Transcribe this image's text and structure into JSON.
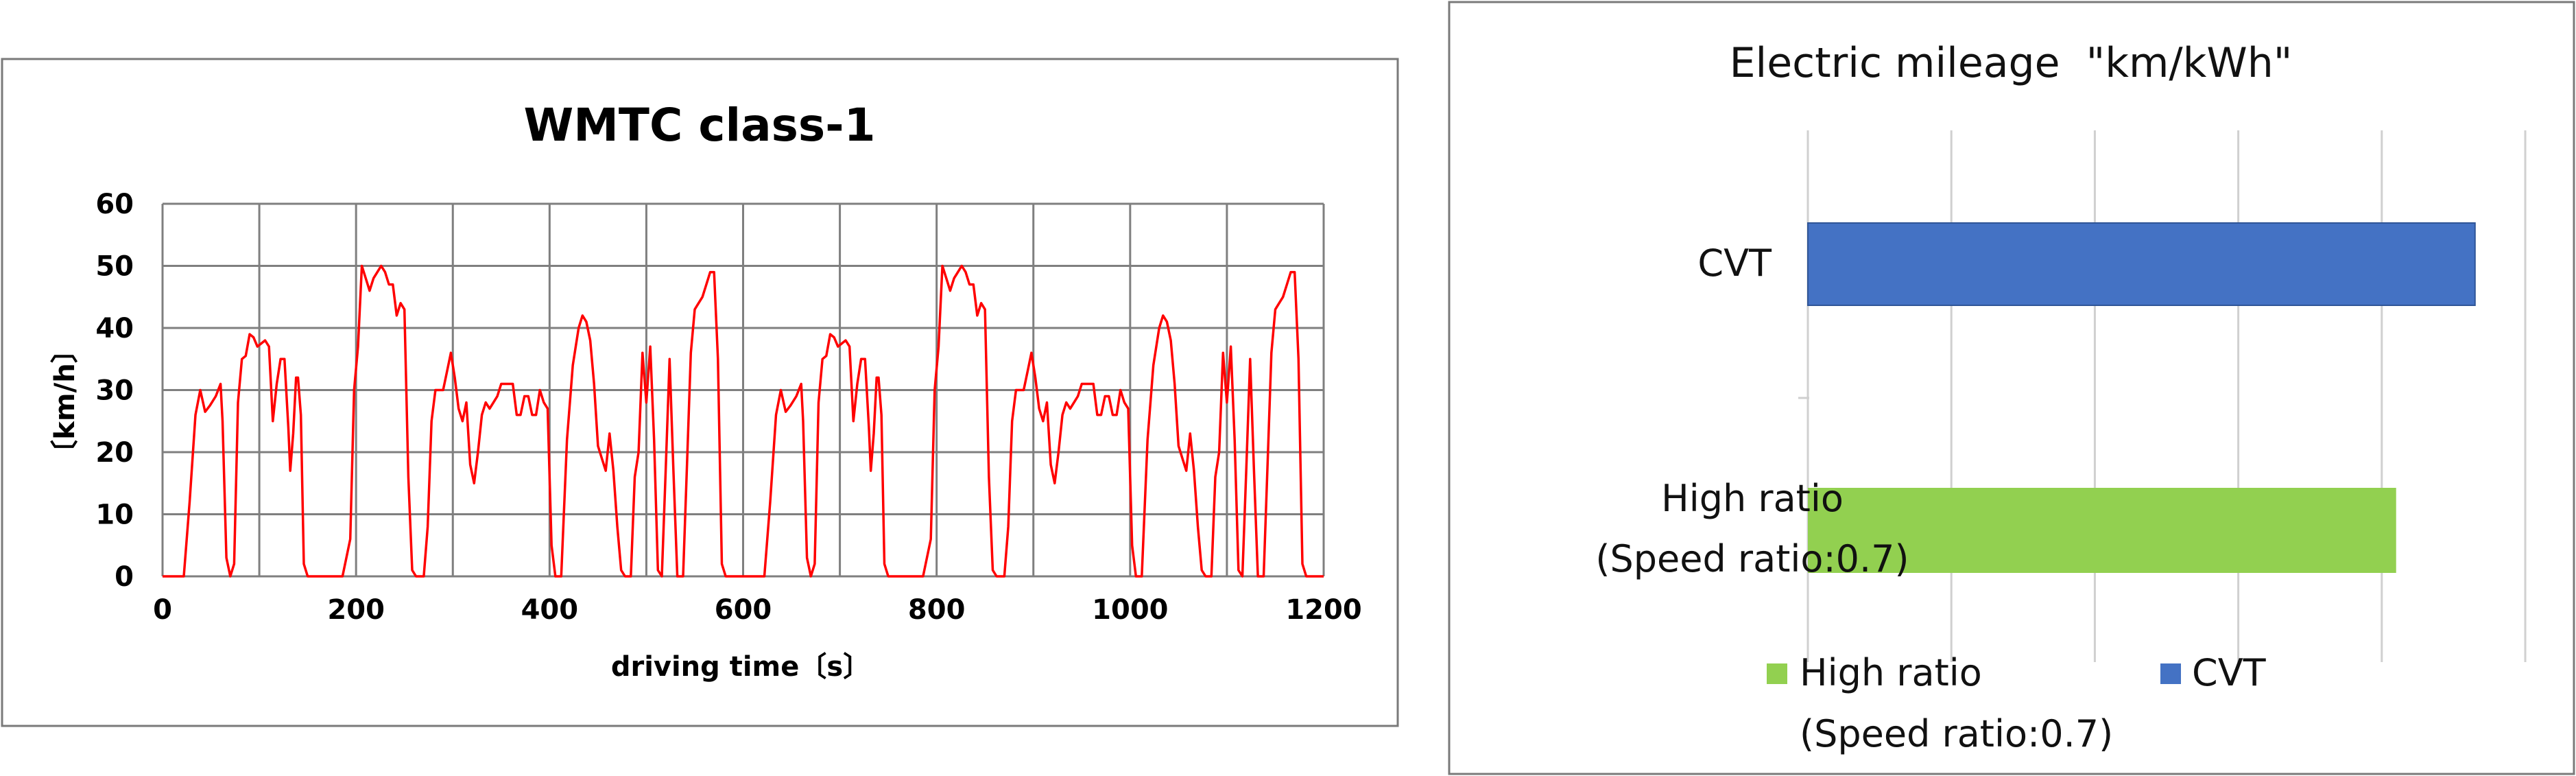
{
  "chart_data": [
    {
      "type": "line",
      "title": "WMTC class-1",
      "xlabel": "driving time〔s〕",
      "ylabel": "〔km/h〕",
      "xlim": [
        0,
        1200
      ],
      "ylim": [
        0,
        60
      ],
      "x_ticks": [
        "0",
        "200",
        "400",
        "600",
        "800",
        "1000",
        "1200"
      ],
      "y_ticks": [
        "0",
        "10",
        "20",
        "30",
        "40",
        "50",
        "60"
      ],
      "grid": true,
      "line_color": "#ff0000",
      "series": [
        {
          "name": "",
          "points": [
            [
              0,
              0
            ],
            [
              22,
              0
            ],
            [
              28,
              12
            ],
            [
              34,
              26
            ],
            [
              39,
              30
            ],
            [
              44,
              26.5
            ],
            [
              49,
              27.5
            ],
            [
              55,
              29
            ],
            [
              60,
              31
            ],
            [
              62,
              25
            ],
            [
              66,
              3
            ],
            [
              70,
              0
            ],
            [
              74,
              2
            ],
            [
              78,
              28
            ],
            [
              82,
              35
            ],
            [
              86,
              35.5
            ],
            [
              90,
              39
            ],
            [
              94,
              38.5
            ],
            [
              98,
              37
            ],
            [
              102,
              37.5
            ],
            [
              106,
              38
            ],
            [
              110,
              37
            ],
            [
              114,
              25
            ],
            [
              118,
              31
            ],
            [
              122,
              35
            ],
            [
              126,
              35
            ],
            [
              130,
              24
            ],
            [
              132,
              17
            ],
            [
              135,
              23
            ],
            [
              138,
              32
            ],
            [
              140,
              32
            ],
            [
              143,
              26
            ],
            [
              146,
              2
            ],
            [
              150,
              0
            ],
            [
              186,
              0
            ],
            [
              194,
              6
            ],
            [
              198,
              30
            ],
            [
              202,
              37
            ],
            [
              206,
              50
            ],
            [
              210,
              48
            ],
            [
              214,
              46
            ],
            [
              218,
              48
            ],
            [
              222,
              49
            ],
            [
              226,
              50
            ],
            [
              230,
              49
            ],
            [
              234,
              47
            ],
            [
              238,
              47
            ],
            [
              242,
              42
            ],
            [
              246,
              44
            ],
            [
              250,
              43
            ],
            [
              254,
              16
            ],
            [
              258,
              1
            ],
            [
              262,
              0
            ],
            [
              270,
              0
            ],
            [
              274,
              8
            ],
            [
              278,
              25
            ],
            [
              282,
              30
            ],
            [
              286,
              30
            ],
            [
              290,
              30
            ],
            [
              294,
              33
            ],
            [
              298,
              36
            ],
            [
              302,
              32
            ],
            [
              306,
              27
            ],
            [
              310,
              25
            ],
            [
              314,
              28
            ],
            [
              318,
              18
            ],
            [
              322,
              15
            ],
            [
              326,
              20
            ],
            [
              330,
              26
            ],
            [
              334,
              28
            ],
            [
              338,
              27
            ],
            [
              342,
              28
            ],
            [
              346,
              29
            ],
            [
              350,
              31
            ],
            [
              354,
              31
            ],
            [
              358,
              31
            ],
            [
              362,
              31
            ],
            [
              366,
              26
            ],
            [
              370,
              26
            ],
            [
              374,
              29
            ],
            [
              378,
              29
            ],
            [
              382,
              26
            ],
            [
              386,
              26
            ],
            [
              390,
              30
            ],
            [
              394,
              28
            ],
            [
              398,
              27
            ],
            [
              402,
              5
            ],
            [
              406,
              0
            ],
            [
              412,
              0
            ],
            [
              418,
              22
            ],
            [
              424,
              34
            ],
            [
              430,
              40
            ],
            [
              434,
              42
            ],
            [
              438,
              41
            ],
            [
              442,
              38
            ],
            [
              446,
              31
            ],
            [
              450,
              21
            ],
            [
              454,
              19
            ],
            [
              458,
              17
            ],
            [
              462,
              23
            ],
            [
              466,
              17
            ],
            [
              470,
              8
            ],
            [
              474,
              1
            ],
            [
              478,
              0
            ],
            [
              484,
              0
            ],
            [
              488,
              16
            ],
            [
              492,
              20
            ],
            [
              496,
              36
            ],
            [
              500,
              28
            ],
            [
              504,
              37
            ],
            [
              508,
              22
            ],
            [
              512,
              1
            ],
            [
              516,
              0
            ],
            [
              520,
              17
            ],
            [
              524,
              35
            ],
            [
              528,
              17
            ],
            [
              532,
              0
            ],
            [
              538,
              0
            ],
            [
              542,
              18
            ],
            [
              546,
              36
            ],
            [
              550,
              43
            ],
            [
              554,
              44
            ],
            [
              558,
              45
            ],
            [
              562,
              47
            ],
            [
              566,
              49
            ],
            [
              570,
              49
            ],
            [
              574,
              35
            ],
            [
              578,
              2
            ],
            [
              582,
              0
            ],
            [
              600,
              0
            ]
          ]
        }
      ]
    },
    {
      "type": "bar",
      "orientation": "horizontal",
      "title": "Electric mileage  \"km/kWh\"",
      "categories": [
        "CVT",
        "High ratio",
        "(Speed ratio:0.7)"
      ],
      "value_axis_max": 5,
      "grid": true,
      "legend_position": "bottom",
      "series": [
        {
          "name": "CVT",
          "value": 4.65,
          "color": "#4472c4",
          "label": "CVT"
        },
        {
          "name": "High ratio\n(Speed ratio:0.7)",
          "value": 4.1,
          "color": "#92d050",
          "label_line1": "High ratio",
          "label_line2": "(Speed ratio:0.7)"
        }
      ],
      "legend": [
        {
          "line1": "High ratio",
          "line2": "(Speed ratio:0.7)",
          "color": "#92d050"
        },
        {
          "line1": "CVT",
          "line2": "",
          "color": "#4472c4"
        }
      ]
    }
  ]
}
